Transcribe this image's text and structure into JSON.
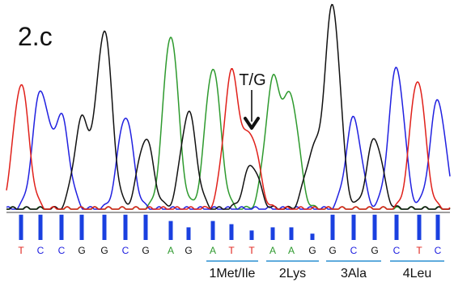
{
  "figure_label": "2.c",
  "mutation_label": "T/G",
  "colors": {
    "A": "#2e9a2e",
    "C": "#2020e0",
    "G": "#111111",
    "T": "#e0201a",
    "bar": "#1a40e0",
    "codon_line": "#4a9fd8"
  },
  "chart_data": {
    "type": "line",
    "bases": [
      "T",
      "C",
      "C",
      "G",
      "G",
      "C",
      "G",
      "A",
      "G",
      "A",
      "T",
      "T",
      "A",
      "A",
      "G",
      "G",
      "C",
      "G",
      "C",
      "T",
      "C"
    ],
    "quality": [
      8,
      8,
      8,
      8,
      8,
      8,
      8,
      6,
      4,
      6,
      5,
      3,
      4,
      4,
      2,
      8,
      8,
      8,
      8,
      8,
      8
    ],
    "peaks": [
      {
        "channel": "T",
        "height": 0.62
      },
      {
        "channel": "C",
        "height": 0.58
      },
      {
        "channel": "C",
        "height": 0.45
      },
      {
        "channel": "G",
        "height": 0.44
      },
      {
        "channel": "G",
        "height": 0.88
      },
      {
        "channel": "C",
        "height": 0.46
      },
      {
        "channel": "G",
        "height": 0.35
      },
      {
        "channel": "A",
        "height": 0.86
      },
      {
        "channel": "G",
        "height": 0.48
      },
      {
        "channel": "A",
        "height": 0.7
      },
      {
        "channel": "T",
        "height": 0.67
      },
      {
        "channel": "T",
        "height": 0.35
      },
      {
        "channel": "G",
        "height": 0.22
      },
      {
        "channel": "A",
        "height": 0.62
      },
      {
        "channel": "A",
        "height": 0.53
      },
      {
        "channel": "G",
        "height": 0.27
      },
      {
        "channel": "G",
        "height": 1.0
      },
      {
        "channel": "C",
        "height": 0.45
      },
      {
        "channel": "G",
        "height": 0.35
      },
      {
        "channel": "C",
        "height": 0.7
      },
      {
        "channel": "T",
        "height": 0.64
      },
      {
        "channel": "C",
        "height": 0.54
      }
    ],
    "codons": [
      {
        "label": "1Met/Ile",
        "start": 9,
        "end": 11
      },
      {
        "label": "2Lys",
        "start": 12,
        "end": 14
      },
      {
        "label": "3Ala",
        "start": 15,
        "end": 17
      },
      {
        "label": "4Leu",
        "start": 18,
        "end": 20
      }
    ],
    "annotation": {
      "text": "T/G",
      "base_index": 11
    }
  }
}
